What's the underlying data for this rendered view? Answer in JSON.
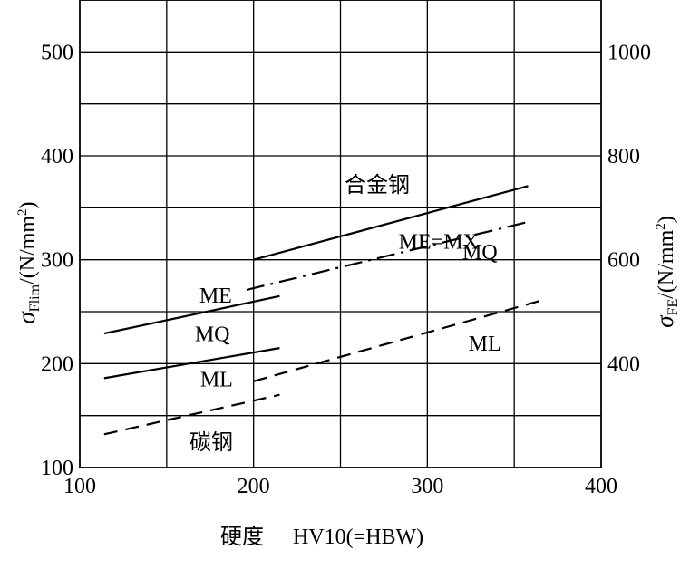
{
  "chart_data": {
    "type": "line",
    "xlabel_cn": "硬度",
    "xlabel_rest": "HV10(=HBW)",
    "ylabel_left": {
      "sym": "σ",
      "sub": "Flim",
      "rest": "/(N/mm",
      "sup": "2",
      "end": ")"
    },
    "ylabel_right": {
      "sym": "σ",
      "sub": "FE",
      "rest": "/(N/mm",
      "sup": "2",
      "end": ")"
    },
    "xlim": [
      100,
      400
    ],
    "ylim": [
      100,
      550
    ],
    "x_ticks": [
      "100",
      "200",
      "300",
      "400"
    ],
    "y_ticks_left": [
      "100",
      "200",
      "300",
      "400",
      "500"
    ],
    "y_ticks_right": [
      "400",
      "600",
      "800",
      "1000"
    ],
    "group_labels": {
      "alloy": "合金钢",
      "carbon": "碳钢"
    },
    "series": [
      {
        "name": "ME=MX",
        "group": "alloy",
        "style": "solid",
        "x": [
          200,
          358
        ],
        "y": [
          300,
          371
        ]
      },
      {
        "name": "MQ",
        "group": "alloy",
        "style": "dashdot",
        "x": [
          196,
          357
        ],
        "y": [
          271,
          336
        ]
      },
      {
        "name": "ML",
        "group": "alloy",
        "style": "dashed",
        "x": [
          200,
          366
        ],
        "y": [
          183,
          261
        ]
      },
      {
        "name": "ME",
        "group": "carbon",
        "style": "solid",
        "x": [
          114,
          215
        ],
        "y": [
          229,
          265
        ]
      },
      {
        "name": "MQ",
        "group": "carbon",
        "style": "solid",
        "x": [
          114,
          215
        ],
        "y": [
          186,
          215
        ]
      },
      {
        "name": "ML",
        "group": "carbon",
        "style": "dashed",
        "x": [
          114,
          215
        ],
        "y": [
          132,
          170
        ]
      }
    ]
  }
}
